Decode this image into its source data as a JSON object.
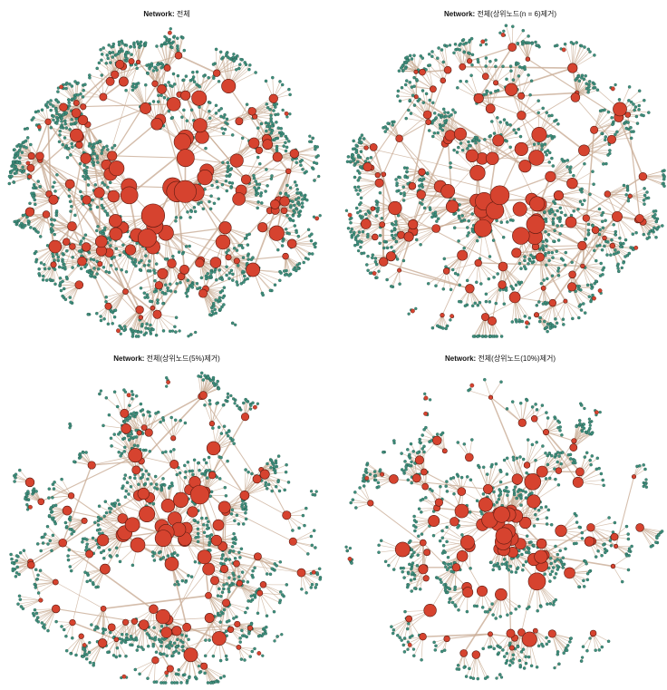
{
  "colors": {
    "hub": "#d6432f",
    "hub_stroke": "#5a1a10",
    "leaf": "#3f8f7d",
    "leaf_stroke": "#1f4d42",
    "edge": "#c9ad96",
    "background": "#ffffff"
  },
  "panels": [
    {
      "title_prefix": "Network:",
      "title_rest": " 전체",
      "graph": {
        "hubs": 130,
        "leaves_per_hub": [
          4,
          14
        ],
        "density": "very-dense",
        "seed": 11
      }
    },
    {
      "title_prefix": "Network:",
      "title_rest": " 전체(상위노드(n = 6)제거)",
      "graph": {
        "hubs": 120,
        "leaves_per_hub": [
          4,
          12
        ],
        "density": "dense",
        "seed": 23
      }
    },
    {
      "title_prefix": "Network:",
      "title_rest": " 전체(상위노드(5%)제거)",
      "graph": {
        "hubs": 110,
        "leaves_per_hub": [
          4,
          12
        ],
        "density": "medium",
        "seed": 37
      }
    },
    {
      "title_prefix": "Network:",
      "title_rest": " 전체(상위노드(10%)제거)",
      "graph": {
        "hubs": 95,
        "leaves_per_hub": [
          3,
          11
        ],
        "density": "sparse",
        "seed": 53
      }
    }
  ]
}
